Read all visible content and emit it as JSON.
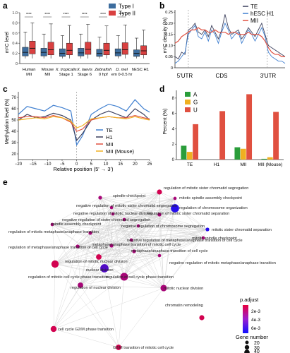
{
  "panels": {
    "a": {
      "letter": "a",
      "ylabel": "m⁵C level",
      "legend": [
        "Type I",
        "Type II"
      ],
      "colors": {
        "type1": "#3d6d9e",
        "type2": "#d94040"
      },
      "stars": [
        "****",
        "****",
        "****",
        "****",
        "****",
        "****"
      ],
      "tick_labels": [
        "0",
        "0.2",
        "0.4",
        "0.6",
        "0.8",
        "1.0"
      ],
      "groups": [
        {
          "line1": "Human",
          "line2": "MII"
        },
        {
          "line1": "Mouse",
          "line2": "MII"
        },
        {
          "line1": "X. tropicalis",
          "line2": "Stage 1"
        },
        {
          "line1": "X. laevis",
          "line2": "Stage 6"
        },
        {
          "line1": "Zebrafish",
          "line2": "0 hpf"
        },
        {
          "line1": "D. mel",
          "line2": "em 0-0.5 hr"
        },
        {
          "line1": "hESC H1",
          "line2": ""
        }
      ]
    },
    "b": {
      "letter": "b",
      "ylabel": "m⁵C density (%)",
      "legend": [
        "TE",
        "hESC H1",
        "MII"
      ],
      "colors": {
        "TE": "#3b3f5c",
        "H1": "#3f7fd0",
        "MII": "#e05040"
      },
      "x_labels": [
        "5'UTR",
        "CDS",
        "3'UTR"
      ],
      "tick_labels": [
        "0",
        "0.05",
        "0.10",
        "0.15",
        "0.20",
        "0.25"
      ]
    },
    "c": {
      "letter": "c",
      "ylabel": "Methylation level (%)",
      "xlabel": "Relative position (5' → 3')",
      "legend": [
        "TE",
        "H1",
        "MII",
        "MII (Mouse)"
      ],
      "colors": {
        "TE": "#3f7fd0",
        "H1": "#3b3f5c",
        "MII": "#e05040",
        "Mouse": "#f0b020"
      },
      "x_ticks": [
        "−20",
        "−15",
        "−10",
        "−5",
        "0",
        "5",
        "10",
        "15",
        "20",
        "25"
      ],
      "y_ticks": [
        "20",
        "30",
        "40",
        "50",
        "60",
        "70"
      ]
    },
    "d": {
      "letter": "d",
      "ylabel": "Percent (%)",
      "legend": [
        "A",
        "G",
        "U"
      ],
      "colors": {
        "A": "#2a9d3a",
        "G": "#f0b020",
        "U": "#e05040"
      },
      "categories": [
        "TE",
        "H1",
        "MII",
        "MII (Mouse)"
      ],
      "y_ticks": [
        "0",
        "2",
        "4",
        "6",
        "8"
      ]
    },
    "e": {
      "letter": "e",
      "legend_color_title": "p.adjust",
      "legend_color_ticks": [
        "2e-3",
        "4e-3",
        "6e-3"
      ],
      "legend_size_title": "Gene number",
      "legend_size_ticks": [
        "20",
        "30",
        "40"
      ]
    }
  },
  "chart_data": [
    {
      "type": "box",
      "panel": "a",
      "ylabel": "m⁵C level",
      "ylim": [
        0,
        1
      ],
      "categories": [
        "Human MII",
        "Mouse MII",
        "X. tropicalis Stage 1",
        "X. laevis Stage 6",
        "Zebrafish 0 hpf",
        "D. mel em 0-0.5 hr",
        "hESC H1"
      ],
      "series": [
        {
          "name": "Type I",
          "stats": [
            {
              "whislo": 0.1,
              "q1": 0.15,
              "med": 0.22,
              "q3": 0.32,
              "whishi": 0.62
            },
            {
              "whislo": 0.1,
              "q1": 0.15,
              "med": 0.22,
              "q3": 0.3,
              "whishi": 0.58
            },
            {
              "whislo": 0.1,
              "q1": 0.14,
              "med": 0.2,
              "q3": 0.29,
              "whishi": 0.55
            },
            {
              "whislo": 0.1,
              "q1": 0.15,
              "med": 0.21,
              "q3": 0.3,
              "whishi": 0.58
            },
            {
              "whislo": 0.1,
              "q1": 0.14,
              "med": 0.2,
              "q3": 0.28,
              "whishi": 0.52
            },
            {
              "whislo": 0.1,
              "q1": 0.15,
              "med": 0.21,
              "q3": 0.29,
              "whishi": 0.55
            },
            {
              "whislo": 0.1,
              "q1": 0.14,
              "med": 0.2,
              "q3": 0.27,
              "whishi": 0.5
            }
          ]
        },
        {
          "name": "Type II",
          "stats": [
            {
              "whislo": 0.1,
              "q1": 0.19,
              "med": 0.3,
              "q3": 0.44,
              "whishi": 0.8
            },
            {
              "whislo": 0.1,
              "q1": 0.17,
              "med": 0.27,
              "q3": 0.42,
              "whishi": 0.78
            },
            {
              "whislo": 0.1,
              "q1": 0.17,
              "med": 0.26,
              "q3": 0.4,
              "whishi": 0.75
            },
            {
              "whislo": 0.1,
              "q1": 0.18,
              "med": 0.28,
              "q3": 0.42,
              "whishi": 0.77
            },
            {
              "whislo": 0.1,
              "q1": 0.17,
              "med": 0.26,
              "q3": 0.4,
              "whishi": 0.74
            },
            {
              "whislo": 0.1,
              "q1": 0.18,
              "med": 0.27,
              "q3": 0.41,
              "whishi": 0.76
            },
            {
              "whislo": 0.1,
              "q1": 0.17,
              "med": 0.25,
              "q3": 0.35,
              "whishi": 0.66
            }
          ]
        }
      ]
    },
    {
      "type": "line",
      "panel": "b",
      "ylabel": "m⁵C density (%)",
      "ylim": [
        0,
        0.26
      ],
      "x_regions": [
        "5'UTR",
        "CDS",
        "3'UTR"
      ],
      "x": [
        0,
        3,
        6,
        9,
        12,
        15,
        18,
        21,
        24,
        27,
        30,
        33,
        36,
        39,
        42,
        45,
        48,
        51,
        54,
        57,
        60,
        63,
        66,
        69,
        72,
        75,
        78,
        81,
        84,
        87,
        90,
        93,
        96,
        99
      ],
      "series": [
        {
          "name": "TE",
          "values": [
            0.05,
            0.04,
            0.07,
            0.06,
            0.17,
            0.18,
            0.2,
            0.16,
            0.15,
            0.17,
            0.14,
            0.19,
            0.16,
            0.13,
            0.17,
            0.24,
            0.18,
            0.15,
            0.16,
            0.17,
            0.13,
            0.15,
            0.18,
            0.16,
            0.14,
            0.17,
            0.2,
            0.15,
            0.1,
            0.09,
            0.08,
            0.07,
            0.06,
            0.05
          ]
        },
        {
          "name": "hESC H1",
          "values": [
            0.02,
            0.03,
            0.05,
            0.07,
            0.15,
            0.17,
            0.19,
            0.14,
            0.13,
            0.16,
            0.12,
            0.17,
            0.15,
            0.11,
            0.16,
            0.2,
            0.17,
            0.13,
            0.15,
            0.16,
            0.11,
            0.14,
            0.17,
            0.15,
            0.12,
            0.15,
            0.18,
            0.14,
            0.07,
            0.05,
            0.04,
            0.03,
            0.03,
            0.02
          ]
        },
        {
          "name": "MII",
          "values": [
            0.11,
            0.12,
            0.14,
            0.15,
            0.16,
            0.17,
            0.17,
            0.18,
            0.17,
            0.17,
            0.16,
            0.16,
            0.17,
            0.16,
            0.16,
            0.16,
            0.15,
            0.16,
            0.16,
            0.15,
            0.15,
            0.15,
            0.16,
            0.15,
            0.15,
            0.15,
            0.14,
            0.12,
            0.09,
            0.07,
            0.06,
            0.06,
            0.05,
            0.05
          ]
        }
      ]
    },
    {
      "type": "line",
      "panel": "c",
      "xlabel": "Relative position (5' → 3')",
      "ylabel": "Methylation level (%)",
      "xlim": [
        -20,
        25
      ],
      "ylim": [
        15,
        75
      ],
      "x": [
        -20,
        -17,
        -14,
        -11,
        -8,
        -5,
        -2,
        0,
        2,
        5,
        8,
        11,
        14,
        17,
        20,
        23,
        25
      ],
      "series": [
        {
          "name": "TE",
          "values": [
            55,
            62,
            60,
            58,
            63,
            61,
            58,
            28,
            36,
            55,
            60,
            64,
            62,
            58,
            68,
            60,
            57
          ]
        },
        {
          "name": "H1",
          "values": [
            50,
            55,
            52,
            53,
            56,
            54,
            50,
            32,
            38,
            50,
            55,
            58,
            55,
            52,
            60,
            55,
            50
          ]
        },
        {
          "name": "MII",
          "values": [
            52,
            53,
            53,
            52,
            54,
            52,
            48,
            40,
            42,
            50,
            52,
            53,
            52,
            52,
            54,
            52,
            51
          ]
        },
        {
          "name": "MII (Mouse)",
          "values": [
            50,
            51,
            52,
            51,
            53,
            52,
            49,
            43,
            45,
            51,
            52,
            53,
            52,
            51,
            53,
            51,
            50
          ]
        }
      ]
    },
    {
      "type": "bar",
      "panel": "d",
      "ylabel": "Percent (%)",
      "ylim": [
        0,
        9
      ],
      "categories": [
        "TE",
        "H1",
        "MII",
        "MII (Mouse)"
      ],
      "series": [
        {
          "name": "A",
          "values": [
            1.8,
            0,
            1.6,
            0.1
          ]
        },
        {
          "name": "G",
          "values": [
            1.0,
            0,
            1.4,
            0.3
          ]
        },
        {
          "name": "U",
          "values": [
            4.6,
            6.3,
            8.5,
            6.2
          ]
        }
      ]
    },
    {
      "type": "network",
      "panel": "e",
      "nodes": [
        {
          "label": "regulation of mitotic sister chromatid segregation",
          "padj": 0.002,
          "genes": 28
        },
        {
          "label": "spindle checkpoint",
          "padj": 0.003,
          "genes": 22
        },
        {
          "label": "mitotic spindle assembly checkpoint",
          "padj": 0.003,
          "genes": 20
        },
        {
          "label": "negative regulation of mitotic sister chromatid segregation",
          "padj": 0.003,
          "genes": 20
        },
        {
          "label": "regulation of chromosome organization",
          "padj": 0.006,
          "genes": 42
        },
        {
          "label": "negative regulation of mitotic nuclear division",
          "padj": 0.003,
          "genes": 20
        },
        {
          "label": "regulation of mitotic sister chromatid separation",
          "padj": 0.003,
          "genes": 22
        },
        {
          "label": "negative regulation of sister chromatid segregation",
          "padj": 0.003,
          "genes": 20
        },
        {
          "label": "negative regulation of chromosome segregation",
          "padj": 0.003,
          "genes": 20
        },
        {
          "label": "spindle assembly checkpoint",
          "padj": 0.003,
          "genes": 20
        },
        {
          "label": "mitotic sister chromatid separation",
          "padj": 0.006,
          "genes": 22
        },
        {
          "label": "regulation of mitotic metaphase/anaphase transition",
          "padj": 0.003,
          "genes": 22
        },
        {
          "label": "mitotic spindle checkpoint",
          "padj": 0.003,
          "genes": 20
        },
        {
          "label": "negative regulation of metaphase/anaphase transition of cell cycle",
          "padj": 0.003,
          "genes": 20
        },
        {
          "label": "metaphase/anaphase transition of mitotic cell cycle",
          "padj": 0.003,
          "genes": 22
        },
        {
          "label": "regulation of metaphase/anaphase transition of cell cycle",
          "padj": 0.003,
          "genes": 22
        },
        {
          "label": "metaphase/anaphase transition of cell cycle",
          "padj": 0.003,
          "genes": 22
        },
        {
          "label": "regulation of mitotic nuclear division",
          "padj": 0.002,
          "genes": 30
        },
        {
          "label": "negative regulation of mitotic metaphase/anaphase transition",
          "padj": 0.003,
          "genes": 20
        },
        {
          "label": "nuclear division",
          "padj": 0.005,
          "genes": 42
        },
        {
          "label": "regulation of mitotic cell cycle phase transition",
          "padj": 0.002,
          "genes": 38
        },
        {
          "label": "regulation of cell cycle phase transition",
          "padj": 0.003,
          "genes": 40
        },
        {
          "label": "regulation of nuclear division",
          "padj": 0.003,
          "genes": 30
        },
        {
          "label": "mitotic nuclear division",
          "padj": 0.003,
          "genes": 34
        },
        {
          "label": "chromatin remodeling",
          "padj": 0.002,
          "genes": 28
        },
        {
          "label": "cell cycle G2/M phase transition",
          "padj": 0.002,
          "genes": 32
        },
        {
          "label": "G2/M transition of mitotic cell cycle",
          "padj": 0.002,
          "genes": 30
        }
      ]
    }
  ]
}
